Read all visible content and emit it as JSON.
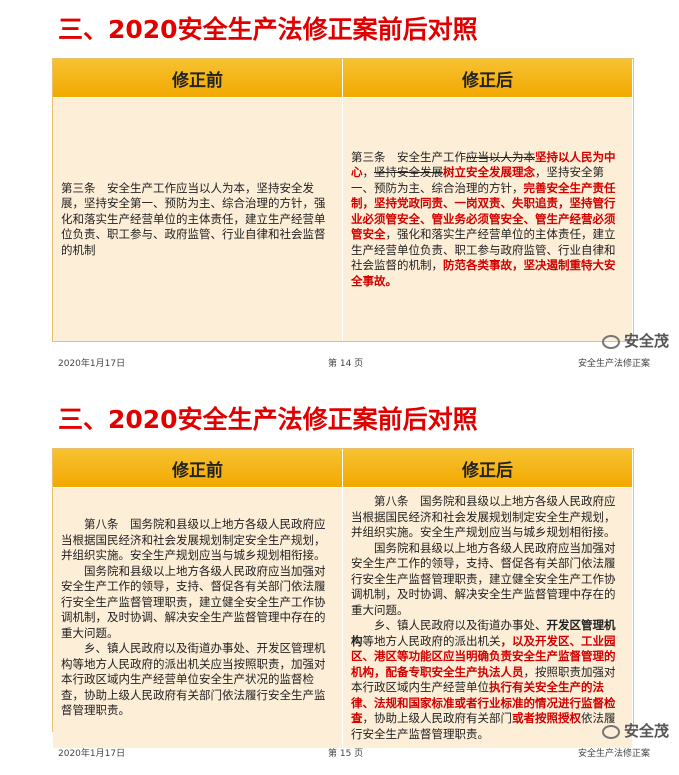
{
  "slides": [
    {
      "title": "三、2020安全生产法修正案前后对照",
      "columns": [
        "修正前",
        "修正后"
      ],
      "before": [
        [
          {
            "text": "第三条　安全生产工作应当以人为本，坚持安全发展，坚持安全第一、预防为主、综合治理的方针，强化和落实生产经营单位的主体责任，建立生产经营单位负责、职工参与、政府监管、行业自律和社会监督的机制"
          }
        ]
      ],
      "after": [
        [
          {
            "text": "第三条　安全生产工作"
          },
          {
            "text": "应当以人为本",
            "strike": true
          },
          {
            "text": "坚持以人民为中心",
            "color": "#d40000",
            "bold": true
          },
          {
            "text": "，"
          },
          {
            "text": "坚持安全发展",
            "strike": true
          },
          {
            "text": "树立安全发展理念",
            "color": "#d40000",
            "bold": true
          },
          {
            "text": "，坚持安全第一、预防为主、综合治理的方针，"
          },
          {
            "text": "完善安全生产责任制，坚持党政同责、一岗双责、失职追责，坚持管行业必须管安全、管业务必须管安全、管生产经营必须管安全",
            "color": "#d40000",
            "bold": true
          },
          {
            "text": "，强化和落实生产经营单位的主体责任，建立生产经营单位负责、职工参与政府监管、行业自律和社会监督的机制，"
          },
          {
            "text": "防范各类事故，坚决遏制重特大安全事故。",
            "color": "#d40000",
            "bold": true
          }
        ]
      ],
      "footer": {
        "date": "2020年1月17日",
        "page": "第 14 页",
        "label": "安全生产法修正案"
      },
      "watermark": "安全茂"
    },
    {
      "title": "三、2020安全生产法修正案前后对照",
      "columns": [
        "修正前",
        "修正后"
      ],
      "before": [
        [
          {
            "text": "第八条　国务院和县级以上地方各级人民政府应当根据国民经济和社会发展规划制定安全生产规划，并组织实施。安全生产规划应当与城乡规划相衔接。"
          }
        ],
        [
          {
            "text": "国务院和县级以上地方各级人民政府应当加强对安全生产工作的领导，支持、督促各有关部门依法履行安全生产监督管理职责，建立健全安全生产工作协调机制，及时协调、解决安全生产监督管理中存在的重大问题。"
          }
        ],
        [
          {
            "text": "乡、镇人民政府以及街道办事处、开发区管理机构等地方人民政府的派出机关应当按照职责，加强对本行政区域内生产经营单位安全生产状况的监督检查，协助上级人民政府有关部门依法履行安全生产监督管理职责。"
          }
        ]
      ],
      "after": [
        [
          {
            "text": "第八条　国务院和县级以上地方各级人民政府应当根据国民经济和社会发展规划制定安全生产规划，并组织实施。安全生产规划应当与城乡规划相衔接。"
          }
        ],
        [
          {
            "text": "国务院和县级以上地方各级人民政府应当加强对安全生产工作的领导，支持、督促各有关部门依法履行安全生产监督管理职责，建立健全安全生产工作协调机制，及时协调、解决安全生产监督管理中存在的重大问题。"
          }
        ],
        [
          {
            "text": "乡、镇人民政府以及街道办事处、"
          },
          {
            "text": "开发区管理机构",
            "bold": true
          },
          {
            "text": "等地方人民政府的派出机关"
          },
          {
            "text": "，以及开发区、工业园区、港区等功能区应当明确负责安全生产监督管理的机构，配备专职安全生产执法人员",
            "color": "#d40000",
            "bold": true
          },
          {
            "text": "，按照职责加强对本行政区域内生产经营单位"
          },
          {
            "text": "执行有关安全生产的法律、法规和国家标准或者行业标准的情况进行监督检查",
            "color": "#d40000",
            "bold": true
          },
          {
            "text": "，协助上级人民政府有关部门"
          },
          {
            "text": "或者按照授权",
            "color": "#d40000",
            "bold": true
          },
          {
            "text": "依法履行安全生产监督管理职责。"
          }
        ]
      ],
      "footer": {
        "date": "2020年1月17日",
        "page": "第 15 页",
        "label": "安全生产法修正案"
      },
      "watermark": "安全茂"
    }
  ]
}
